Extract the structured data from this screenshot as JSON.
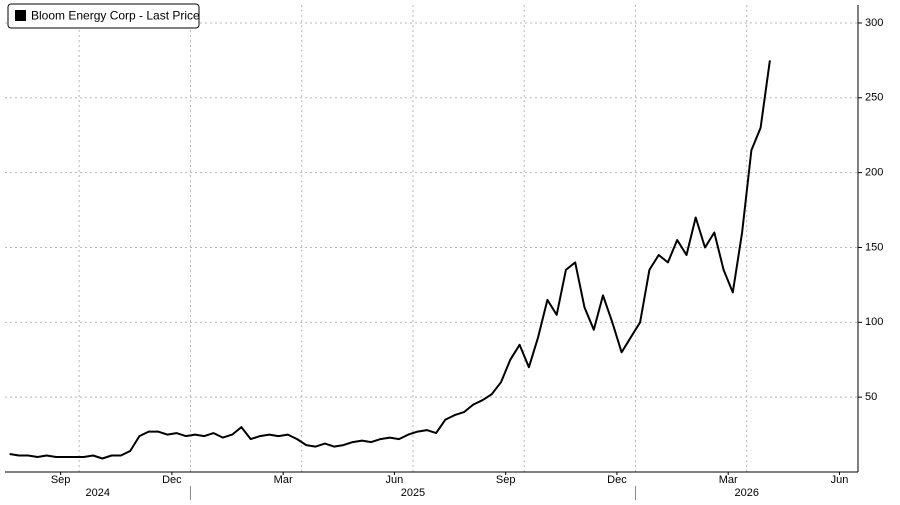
{
  "chart_data": {
    "type": "line",
    "title": "Bloom Energy Corp - Last Price",
    "x": [
      "2024-08",
      "2024-08",
      "2024-08",
      "2024-08",
      "2024-09",
      "2024-09",
      "2024-09",
      "2024-09",
      "2024-10",
      "2024-10",
      "2024-10",
      "2024-10",
      "2024-11",
      "2024-11",
      "2024-11",
      "2024-11",
      "2024-12",
      "2024-12",
      "2024-12",
      "2024-12",
      "2025-01",
      "2025-01",
      "2025-01",
      "2025-01",
      "2025-02",
      "2025-02",
      "2025-02",
      "2025-02",
      "2025-03",
      "2025-03",
      "2025-03",
      "2025-03",
      "2025-04",
      "2025-04",
      "2025-04",
      "2025-04",
      "2025-05",
      "2025-05",
      "2025-05",
      "2025-05",
      "2025-06",
      "2025-06",
      "2025-06",
      "2025-06",
      "2025-07",
      "2025-07",
      "2025-07",
      "2025-07",
      "2025-08",
      "2025-08",
      "2025-08",
      "2025-08",
      "2025-09",
      "2025-09",
      "2025-09",
      "2025-09",
      "2025-10",
      "2025-10",
      "2025-10",
      "2025-10",
      "2025-11",
      "2025-11",
      "2025-11",
      "2025-11",
      "2025-12",
      "2025-12",
      "2025-12",
      "2025-12",
      "2026-01",
      "2026-01",
      "2026-01",
      "2026-01",
      "2026-02",
      "2026-02",
      "2026-02",
      "2026-02",
      "2026-03",
      "2026-03",
      "2026-03",
      "2026-03",
      "2026-04",
      "2026-04",
      "2026-04"
    ],
    "series": [
      {
        "name": "Bloom Energy Corp - Last Price",
        "color": "#000000",
        "values": [
          12,
          11,
          11,
          10,
          11,
          10,
          10,
          10,
          10,
          11,
          9,
          11,
          11,
          14,
          24,
          27,
          27,
          25,
          26,
          24,
          25,
          24,
          26,
          23,
          25,
          30,
          22,
          24,
          25,
          24,
          25,
          22,
          18,
          17,
          19,
          17,
          18,
          20,
          21,
          20,
          22,
          23,
          22,
          25,
          27,
          28,
          26,
          35,
          38,
          40,
          45,
          48,
          52,
          60,
          75,
          85,
          70,
          90,
          115,
          105,
          135,
          140,
          110,
          95,
          118,
          100,
          80,
          90,
          100,
          135,
          145,
          140,
          155,
          145,
          170,
          150,
          160,
          135,
          120,
          160,
          215,
          230,
          275
        ]
      }
    ],
    "xlim": [
      "2024-08",
      "2026-07"
    ],
    "xticks": [
      {
        "value": "2024-09",
        "label": "Sep"
      },
      {
        "value": "2024-12",
        "label": "Dec"
      },
      {
        "value": "2025-03",
        "label": "Mar"
      },
      {
        "value": "2025-06",
        "label": "Jun"
      },
      {
        "value": "2025-09",
        "label": "Sep"
      },
      {
        "value": "2025-12",
        "label": "Dec"
      },
      {
        "value": "2026-03",
        "label": "Mar"
      },
      {
        "value": "2026-06",
        "label": "Jun"
      }
    ],
    "year_labels": [
      2024,
      2025,
      2026
    ],
    "ylim": [
      0,
      312
    ],
    "yticks": [
      50,
      100,
      150,
      200,
      250,
      300
    ],
    "grid": true
  }
}
